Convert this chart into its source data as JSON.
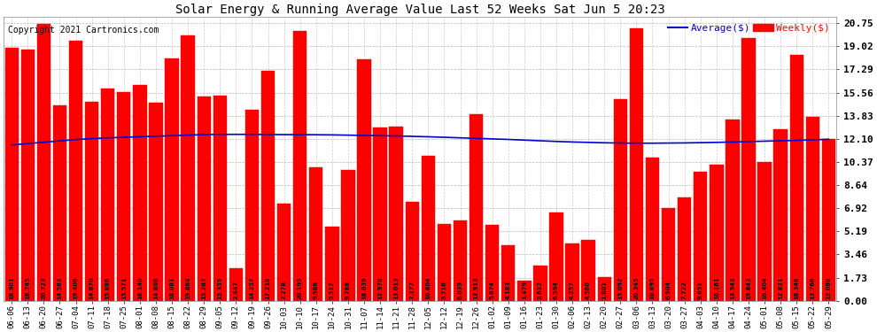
{
  "title": "Solar Energy & Running Average Value Last 52 Weeks Sat Jun 5 20:23",
  "copyright": "Copyright 2021 Cartronics.com",
  "legend_avg": "Average($)",
  "legend_weekly": "Weekly($)",
  "bar_color": "#FF0000",
  "avg_line_color": "#0000CC",
  "background_color": "#FFFFFF",
  "grid_color": "#999999",
  "yticks": [
    0.0,
    1.73,
    3.46,
    5.19,
    6.92,
    8.64,
    10.37,
    12.1,
    13.83,
    15.56,
    17.29,
    19.02,
    20.75
  ],
  "ymax": 21.2,
  "ymin": 0.0,
  "categories": [
    "06-06",
    "06-13",
    "06-20",
    "06-27",
    "07-04",
    "07-11",
    "07-18",
    "07-25",
    "08-01",
    "08-08",
    "08-15",
    "08-22",
    "08-29",
    "09-05",
    "09-12",
    "09-19",
    "09-26",
    "10-03",
    "10-10",
    "10-17",
    "10-24",
    "10-31",
    "11-07",
    "11-14",
    "11-21",
    "11-28",
    "12-05",
    "12-12",
    "12-19",
    "12-26",
    "01-02",
    "01-09",
    "01-16",
    "01-23",
    "01-30",
    "02-06",
    "02-13",
    "02-20",
    "02-27",
    "03-06",
    "03-13",
    "03-20",
    "03-27",
    "04-03",
    "04-10",
    "04-17",
    "04-24",
    "05-01",
    "05-08",
    "05-15",
    "05-22",
    "05-29"
  ],
  "values": [
    18.901,
    18.745,
    20.723,
    14.583,
    19.406,
    14.87,
    15.886,
    15.571,
    16.14,
    14.808,
    18.081,
    19.864,
    15.283,
    15.355,
    2.447,
    14.257,
    17.218,
    7.278,
    20.195,
    9.986,
    5.517,
    9.786,
    18.039,
    12.978,
    13.013,
    7.377,
    10.804,
    5.716,
    6.039,
    13.913,
    5.674,
    4.183,
    1.479,
    2.622,
    6.594,
    4.257,
    4.56,
    1.801,
    15.092,
    20.345,
    10.695,
    6.904,
    7.722,
    9.651,
    10.161,
    13.543,
    19.643,
    10.404,
    12.821,
    18.346,
    13.766,
    12.088
  ],
  "avg_values": [
    11.65,
    11.75,
    11.85,
    11.95,
    12.05,
    12.12,
    12.18,
    12.22,
    12.26,
    12.3,
    12.34,
    12.38,
    12.42,
    12.44,
    12.44,
    12.44,
    12.43,
    12.42,
    12.42,
    12.41,
    12.4,
    12.38,
    12.36,
    12.34,
    12.32,
    12.29,
    12.26,
    12.22,
    12.18,
    12.14,
    12.1,
    12.06,
    12.01,
    11.96,
    11.91,
    11.87,
    11.84,
    11.81,
    11.79,
    11.78,
    11.78,
    11.79,
    11.8,
    11.82,
    11.84,
    11.87,
    11.9,
    11.93,
    11.96,
    11.99,
    12.03,
    12.07
  ]
}
